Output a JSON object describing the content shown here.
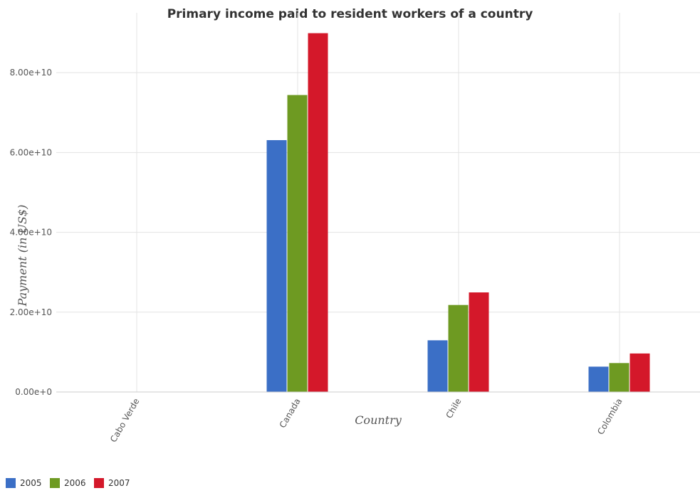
{
  "chart_data": {
    "type": "bar",
    "title": "Primary income paid to resident workers of a country",
    "xlabel": "Country",
    "ylabel": "Payment (in US$)",
    "categories": [
      "Cabo Verde",
      "Canada",
      "Chile",
      "Colombia"
    ],
    "series": [
      {
        "name": "2005",
        "color": "#3b6fc6",
        "values": [
          8000000,
          63100000000,
          12950000000,
          6350000000
        ]
      },
      {
        "name": "2006",
        "color": "#6e9a22",
        "values": [
          12000000,
          74400000000,
          21800000000,
          7250000000
        ]
      },
      {
        "name": "2007",
        "color": "#d4182a",
        "values": [
          15000000,
          89900000000,
          24950000000,
          9650000000
        ]
      }
    ],
    "ylim": [
      0,
      95000000000
    ],
    "yticks": [
      0,
      20000000000,
      40000000000,
      60000000000,
      80000000000
    ],
    "ytick_labels": [
      "0.00e+0",
      "2.00e+10",
      "4.00e+10",
      "6.00e+10",
      "8.00e+10"
    ],
    "grid": true,
    "legend_position": "bottom-left"
  }
}
